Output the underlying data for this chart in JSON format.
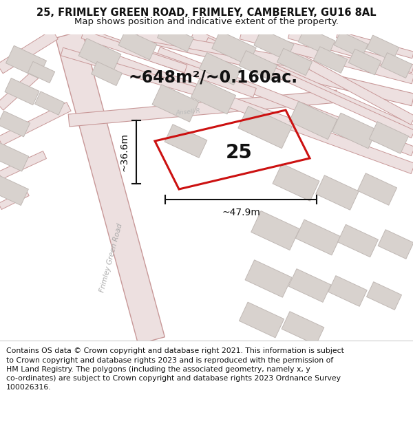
{
  "title_line1": "25, FRIMLEY GREEN ROAD, FRIMLEY, CAMBERLEY, GU16 8AL",
  "title_line2": "Map shows position and indicative extent of the property.",
  "area_text": "~648m²/~0.160ac.",
  "property_number": "25",
  "dim_width": "~47.9m",
  "dim_height": "~36.6m",
  "footer_text": "Contains OS data © Crown copyright and database right 2021. This information is subject to Crown copyright and database rights 2023 and is reproduced with the permission of HM Land Registry. The polygons (including the associated geometry, namely x, y co-ordinates) are subject to Crown copyright and database rights 2023 Ordnance Survey 100026316.",
  "map_bg": "#ede8e4",
  "title_bg": "#ffffff",
  "footer_bg": "#ffffff",
  "road_fill": "#f0e8e8",
  "road_edge": "#d4a0a0",
  "building_fill": "#d8d2ce",
  "building_edge": "#c0b8b4",
  "plot_color": "#cc1111",
  "dim_color": "#111111",
  "text_color": "#111111",
  "road_label_color": "#aaaaaa",
  "title_fontsize": 10.5,
  "subtitle_fontsize": 9.5,
  "area_fontsize": 17,
  "property_num_fontsize": 20,
  "dim_fontsize": 10,
  "footer_fontsize": 7.8
}
